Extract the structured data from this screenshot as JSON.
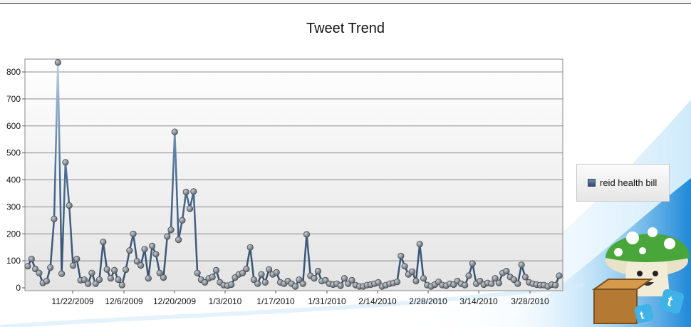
{
  "window": {
    "title": "Tweet Trend"
  },
  "legend": {
    "label": "reid health bill",
    "position": "right"
  },
  "mascot": {
    "name": "mushroom-mascot-icon"
  },
  "colors": {
    "line": "#3c5a7c",
    "marker": "#6f757c",
    "grid": "#8a8a8a",
    "accent": "#1e88d8"
  },
  "chart_data": {
    "type": "line",
    "title": "Tweet Trend",
    "xlabel": "",
    "ylabel": "",
    "ylim": [
      0,
      830
    ],
    "y_ticks": [
      0,
      100,
      200,
      300,
      400,
      500,
      600,
      700,
      800
    ],
    "x_tick_labels": [
      "11/22/2009",
      "12/6/2009",
      "12/20/2009",
      "1/3/2010",
      "1/17/2010",
      "1/31/2010",
      "2/14/2010",
      "2/28/2010",
      "3/14/2010",
      "3/28/2010"
    ],
    "x_range": [
      "11/12/2009",
      "4/6/2010"
    ],
    "grid": true,
    "series": [
      {
        "name": "reid health bill",
        "values": [
          80,
          107,
          70,
          55,
          18,
          25,
          75,
          255,
          835,
          52,
          465,
          305,
          82,
          107,
          28,
          30,
          15,
          55,
          15,
          30,
          170,
          68,
          35,
          65,
          30,
          10,
          67,
          138,
          200,
          98,
          83,
          143,
          35,
          155,
          125,
          55,
          38,
          190,
          215,
          578,
          178,
          250,
          355,
          293,
          357,
          55,
          30,
          20,
          35,
          40,
          65,
          20,
          10,
          8,
          12,
          38,
          50,
          55,
          70,
          150,
          30,
          15,
          50,
          20,
          68,
          50,
          57,
          20,
          15,
          25,
          15,
          5,
          30,
          15,
          198,
          45,
          35,
          62,
          25,
          28,
          15,
          12,
          15,
          8,
          35,
          15,
          28,
          10,
          5,
          5,
          10,
          12,
          15,
          20,
          5,
          10,
          15,
          18,
          22,
          118,
          80,
          50,
          60,
          25,
          162,
          35,
          10,
          5,
          12,
          22,
          10,
          8,
          15,
          12,
          25,
          15,
          10,
          45,
          90,
          15,
          25,
          12,
          18,
          15,
          35,
          18,
          55,
          62,
          40,
          30,
          15,
          85,
          40,
          20,
          15,
          12,
          10,
          10,
          5,
          12,
          10,
          45
        ]
      }
    ]
  }
}
